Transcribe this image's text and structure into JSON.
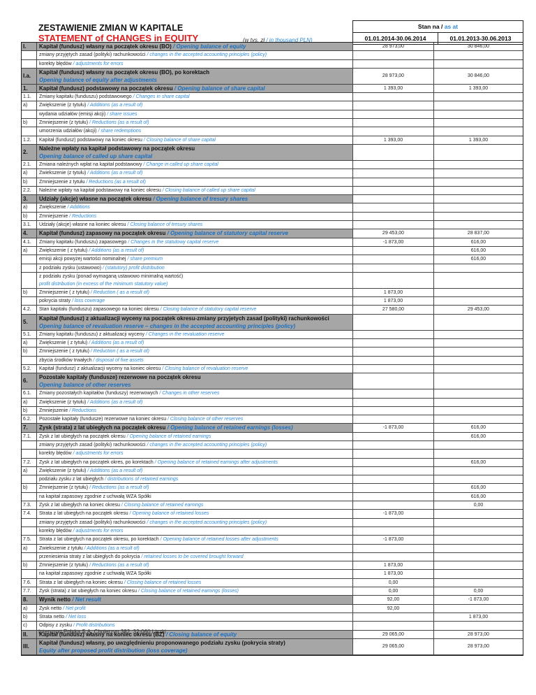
{
  "title_pl": "ZESTAWIENIE ZMIAN W KAPITALE",
  "title_en": "STATEMENT of CHANGES in EQUITY",
  "unit_pl": "(w tys. zł",
  "unit_en": "/ in thousand PLN)",
  "header": {
    "as_at_pl": "Stan na /",
    "as_at_en": "as at",
    "col1": "01.01.2014-30.06.2014",
    "col2": "01.01.2013-30.06.2013"
  },
  "rows": [
    {
      "n": "I.",
      "pl": "Kapitał (fundusz) własny na początek okresu (BO)",
      "en": "/ Opening balance of equity",
      "v1": "28 973,00",
      "v2": "30 846,00",
      "t": "sec"
    },
    {
      "n": "",
      "pl": "zmiany przyjętych zasad (polityki) rachunkowości",
      "en": "/ changes in the accepted accounting principles (policy)",
      "v1": "",
      "v2": ""
    },
    {
      "n": "",
      "pl": "korekty błędów",
      "en": "/ adjustments for errors",
      "v1": "",
      "v2": ""
    },
    {
      "n": "I.a.",
      "pl": "Kapitał (fundusz) własny na początek okresu (BO), po korektach",
      "en": "Opening balance of equity after adjustments",
      "v1": "28 973,00",
      "v2": "30 846,00",
      "t": "sec two"
    },
    {
      "n": "1.",
      "pl": "Kapitał (fundusz) podstawowy na początek okresu",
      "en": "/ Opening balance of share capital",
      "v1": "1 393,00",
      "v2": "1 393,00",
      "t": "sec"
    },
    {
      "n": "1.1.",
      "pl": "Zmiany kapitału (funduszu) podstawowego",
      "en": "/ Changes in share capital",
      "v1": "",
      "v2": ""
    },
    {
      "n": "a)",
      "pl": "Zwiększenie (z tytułu)",
      "en": "/ Additions (as a result of)",
      "v1": "",
      "v2": ""
    },
    {
      "n": "",
      "pl": "wydania udziałów (emisji akcji)",
      "en": "/ share issues",
      "v1": "",
      "v2": ""
    },
    {
      "n": "b)",
      "pl": "Zmniejszenie (z tytułu)",
      "en": "/ Reductions (as a result of)",
      "v1": "",
      "v2": ""
    },
    {
      "n": "",
      "pl": "umorzenia udziałów (akcji)",
      "en": "/ share redemptions",
      "v1": "",
      "v2": ""
    },
    {
      "n": "1.2.",
      "pl": "Kapitał (fundusz) podstawowy na koniec okresu",
      "en": "/ Closing balance of share capital",
      "v1": "1 393,00",
      "v2": "1 393,00"
    },
    {
      "n": "2.",
      "pl": "Należne wpłaty na kapitał podstawowy na początek okresu",
      "en": "Opening balance of called up share capital",
      "v1": "",
      "v2": "",
      "t": "sec two"
    },
    {
      "n": "2.1.",
      "pl": "Zmiana należnych wpłat na kapitał podstawowy",
      "en": "/ Change in called up share capital",
      "v1": "",
      "v2": ""
    },
    {
      "n": "a)",
      "pl": "Zwiekszenie (z tytułu)",
      "en": "/ Additions (as a result of)",
      "v1": "",
      "v2": ""
    },
    {
      "n": "b)",
      "pl": "Zmniejszenie z tytułu",
      "en": "/ Reductions (as a result of)",
      "v1": "",
      "v2": ""
    },
    {
      "n": "2.2.",
      "pl": "Należne wpłaty na kapitał podstawowy na koniec okresu",
      "en": "/ Closing balance of called up share capital",
      "v1": "",
      "v2": ""
    },
    {
      "n": "3.",
      "pl": "Udziały (akcje) własne na początek okresu",
      "en": "/ Opening balance of tresury shares",
      "v1": "",
      "v2": "",
      "t": "sec"
    },
    {
      "n": "a)",
      "pl": "Zwiększenie",
      "en": "/ Additions",
      "v1": "",
      "v2": ""
    },
    {
      "n": "b)",
      "pl": "Zmniejszenie",
      "en": "/ Reductions",
      "v1": "",
      "v2": ""
    },
    {
      "n": "3.1.",
      "pl": "Udziały (akcje) własne na koniec okresu",
      "en": "/ Closing balance of tresury shares",
      "v1": "",
      "v2": ""
    },
    {
      "n": "4.",
      "pl": "Kapitał (fundusz) zapasowy na początek okresu",
      "en": "/ Opening balance of statutory capital reserve",
      "v1": "29 453,00",
      "v2": "28 837,00",
      "t": "sec"
    },
    {
      "n": "4.1.",
      "pl": "Zmiany kapitału (funduszu) zapasowego",
      "en": "/ Changes in the statutowy capital reserve",
      "v1": "-1 873,00",
      "v2": "616,00"
    },
    {
      "n": "a)",
      "pl": "Zwiększenie ( z tytułu)",
      "en": "/ Additions (as a result of)",
      "v1": "",
      "v2": "616,00"
    },
    {
      "n": "",
      "pl": "emisji akcji powyżej wartości nominalnej",
      "en": "/ share premium",
      "v1": "",
      "v2": "616,00"
    },
    {
      "n": "",
      "pl": "z podziału zysku (ustawowo)",
      "en": "/ (statutory) profit distribution",
      "v1": "",
      "v2": ""
    },
    {
      "n": "",
      "pl": "z podziału zysku (ponad wymaganą ustawowo minimalną wartość)",
      "en": "profit distribution (in excess of the minimum statutory value)",
      "v1": "",
      "v2": "",
      "t": "two"
    },
    {
      "n": "b)",
      "pl": "Zmniejszenie ( z tytułu)",
      "en": "/ Reduction ( as a result of)",
      "v1": "1 873,00",
      "v2": ""
    },
    {
      "n": "",
      "pl": "pokrycia straty",
      "en": "/ loss coverage",
      "v1": "1 873,00",
      "v2": ""
    },
    {
      "n": "4.2.",
      "pl": "Stan kapitału (funduszu) zapasowego na koniec okresu",
      "en": "/ Closing balance of statutory capital reserve",
      "v1": "27 580,00",
      "v2": "29 453,00"
    },
    {
      "n": "5.",
      "pl": "Kapitał (fundusz) z aktualizacji wyceny na początek okresu-zmiany przyjetych zasad (polityki) rachunkowości",
      "en": "Opening balance of revaluation reserve – changes in the accepted accounting principles (policy)",
      "v1": "",
      "v2": "",
      "t": "sec two"
    },
    {
      "n": "5.1.",
      "pl": "Zmiany kapitału (funduszu) z aktualizacji wyceny",
      "en": "/ Changes in the revaluation reserve",
      "v1": "",
      "v2": ""
    },
    {
      "n": "a)",
      "pl": "Zwiększenie ( z tytułu)",
      "en": "/ Additions (as a result of)",
      "v1": "",
      "v2": ""
    },
    {
      "n": "b)",
      "pl": "Zmniejszenie ( z tytułu)",
      "en": "/ Reduction ( as a result of)",
      "v1": "",
      "v2": ""
    },
    {
      "n": "",
      "pl": "zbycia środków trwałych",
      "en": "/ disposal of fixe assets",
      "v1": "",
      "v2": ""
    },
    {
      "n": "5.2.",
      "pl": "Kapitał (fundusz) z aktualizacji wyceny na koniec okresu",
      "en": "/ Closing balance of revaluation reserve",
      "v1": "",
      "v2": ""
    },
    {
      "n": "6.",
      "pl": "Pozostałe kapitały (fundusze) rezerwowe na początek okresu",
      "en": "Opening balance of other reserves",
      "v1": "",
      "v2": "",
      "t": "sec two"
    },
    {
      "n": "6.1.",
      "pl": "Zmiany pozostałych kapitałów (funduszy) rezerwowych",
      "en": "/ Changes in other reserves",
      "v1": "",
      "v2": ""
    },
    {
      "n": "a)",
      "pl": "Zwiększenie (z tytułu)",
      "en": "/ Additions (as a result of)",
      "v1": "",
      "v2": ""
    },
    {
      "n": "b)",
      "pl": "Zmniejszenie",
      "en": "/ Reductions",
      "v1": "",
      "v2": ""
    },
    {
      "n": "6.2.",
      "pl": "Pozostałe kapitały (fundusze) rezerwowe na koniec okresu",
      "en": "/ Closing balance of other reserves",
      "v1": "",
      "v2": ""
    },
    {
      "n": "7.",
      "pl": "Zysk (strata) z lat ubiegłych na początek okresu",
      "en": "/ Opening balance of retained earnings (losses)",
      "v1": "-1 873,00",
      "v2": "616,00",
      "t": "sec"
    },
    {
      "n": "7.1.",
      "pl": "Zysk z lat ubiegłych na początek okresu",
      "en": "/ Opening balance of retained earnings",
      "v1": "",
      "v2": "616,00"
    },
    {
      "n": "",
      "pl": "zmiany przyjętych zasad (polityki) rachunkowości",
      "en": "/ changes in the accepted accounting principles (policy)",
      "v1": "",
      "v2": ""
    },
    {
      "n": "",
      "pl": "korekty błędów",
      "en": "/ adjustments for errors",
      "v1": "",
      "v2": ""
    },
    {
      "n": "7.2.",
      "pl": "Zysk z lat ubiegłych na początek okres, po korektach",
      "en": "/ Opening balance of retained earnings after adjustments",
      "v1": "",
      "v2": "616,00"
    },
    {
      "n": "a)",
      "pl": "Zwiększenie (z tytułu)",
      "en": "/ Additions (as a result of)",
      "v1": "",
      "v2": ""
    },
    {
      "n": "",
      "pl": "podziału zysku z lat ubiegłych",
      "en": "/ distributions of retained earnings",
      "v1": "",
      "v2": ""
    },
    {
      "n": "b)",
      "pl": "Zmniejszenie (z tytułu)",
      "en": "/ Reductions (as a result of)",
      "v1": "",
      "v2": "616,00"
    },
    {
      "n": "",
      "pl": "na kapitał zapasowy zgodnie z uchwałą WZA Spółki",
      "en": "",
      "v1": "",
      "v2": "616,00"
    },
    {
      "n": "7.3.",
      "pl": "Zysk z lat ubiegłych na koniec okresu",
      "en": "/ Closing balance of retained earnings",
      "v1": "",
      "v2": "0,00"
    },
    {
      "n": "7.4.",
      "pl": "Strata z lat ubiegłych na początek okresu",
      "en": "/ Opening balance of retained losses",
      "v1": "-1 873,00",
      "v2": ""
    },
    {
      "n": "",
      "pl": "zmiany przyjętych zasad (polityki) rachunkowości",
      "en": "/ changes in the accepted accounting principles (policy)",
      "v1": "",
      "v2": ""
    },
    {
      "n": "",
      "pl": "korekty błędów",
      "en": "/ adjustments for errors",
      "v1": "",
      "v2": ""
    },
    {
      "n": "7.5.",
      "pl": "Strata z lat ubiegłych na początek okresu, po korektach",
      "en": "/ Opening balance of retained losses after adjustments",
      "v1": "-1 873,00",
      "v2": ""
    },
    {
      "n": "a)",
      "pl": "Zwiekszenie z tytułu",
      "en": "/ Additions (as a result of)",
      "v1": "",
      "v2": ""
    },
    {
      "n": "",
      "pl": "przeniesienia straty z lat ubiegłych do pokrycia",
      "en": "/ retained losses to be covered brought forward",
      "v1": "",
      "v2": ""
    },
    {
      "n": "b)",
      "pl": "Zmniejszenie (z tytułu)",
      "en": "/ Reductions (as a result of)",
      "v1": "1 873,00",
      "v2": ""
    },
    {
      "n": "",
      "pl": "na kapitał zapasowy zgodnie z uchwałą WZA Spółki",
      "en": "",
      "v1": "1 873,00",
      "v2": ""
    },
    {
      "n": "7.6.",
      "pl": "Strata z lat ubiegłych na koniec okresu",
      "en": "/ Closing balance of retained losses",
      "v1": "0,00",
      "v2": ""
    },
    {
      "n": "7.7.",
      "pl": "Zysk (strata) z lat ubiegłych na koniec okresu",
      "en": "/ Closing balance of retained earnings (losses)",
      "v1": "0,00",
      "v2": "0,00"
    },
    {
      "n": "8.",
      "pl": "Wynik netto",
      "en": "/ Net result",
      "v1": "92,00",
      "v2": "-1 873,00",
      "t": "sec"
    },
    {
      "n": "a)",
      "pl": "Zysk netto",
      "en": "/ Net profit",
      "v1": "92,00",
      "v2": ""
    },
    {
      "n": "b)",
      "pl": "Strata netto",
      "en": "/ Net loss",
      "v1": "",
      "v2": "1 873,00"
    },
    {
      "n": "c)",
      "pl": "Odpisy z zysku",
      "en": "/ Profit distributions",
      "v1": "",
      "v2": ""
    },
    {
      "n": "II.",
      "pl": "Kapitał (fundusz) własny na koniec okresu (BZ)",
      "en": "/ Closing balance of equity",
      "v1": "29 065,00",
      "v2": "28 973,00",
      "t": "sec"
    },
    {
      "n": "III.",
      "pl": "Kapitał (fundusz) własny, po uwzględnieniu proponowanego podziału zysku (pokrycia straty)",
      "en": "Equity after proposed profit distribution (loss coverage)",
      "v1": "29 065,00",
      "v2": "28 973,00",
      "t": "sec two"
    }
  ],
  "footer": "Intersport Polska S.A. Cholerzyn 382, 32-060 Liszki"
}
